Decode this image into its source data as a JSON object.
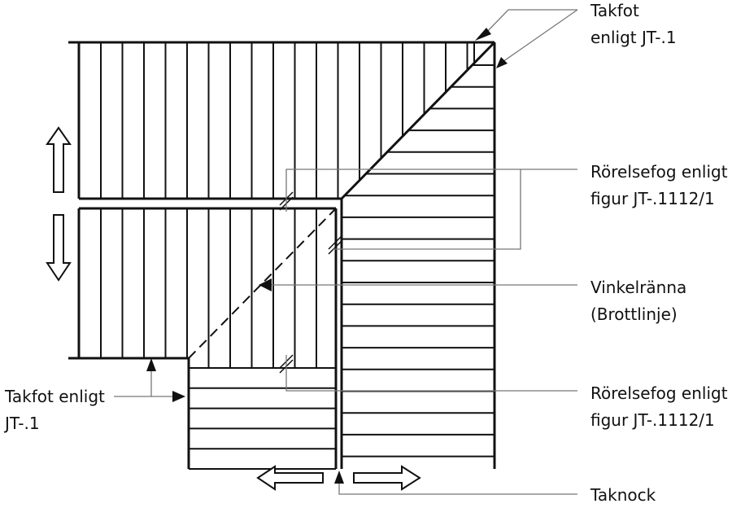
{
  "diagram": {
    "labels": {
      "takfot_top_line1": "Takfot",
      "takfot_top_line2": "enligt JT-.1",
      "fog_upper_line1": "Rörelsefog enligt",
      "fog_upper_line2": "figur JT-.1112/1",
      "vinkel_line1": "Vinkelränna",
      "vinkel_line2": "(Brottlinje)",
      "takfot_left_line1": "Takfot enligt",
      "takfot_left_line2": "JT-.1",
      "fog_lower_line1": "Rörelsefog enligt",
      "fog_lower_line2": "figur JT-.1112/1",
      "taknock": "Taknock"
    },
    "colors": {
      "line": "#111111",
      "leader": "#777777",
      "background": "#ffffff"
    },
    "icons": [
      "arrow-up-icon",
      "arrow-down-icon",
      "arrow-left-icon",
      "arrow-right-icon"
    ]
  }
}
